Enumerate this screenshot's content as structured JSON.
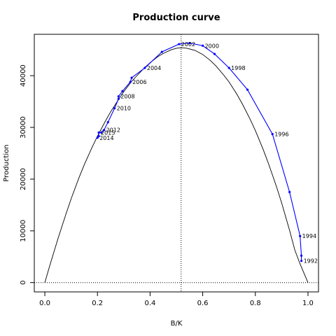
{
  "chart_data": {
    "type": "line",
    "title": "Production curve",
    "xlabel": "B/K",
    "ylabel": "Production",
    "xlim": [
      -0.04,
      1.04
    ],
    "ylim": [
      -1800,
      48000
    ],
    "xticks": [
      0.0,
      0.2,
      0.4,
      0.6,
      0.8,
      1.0
    ],
    "xtick_labels": [
      "0.0",
      "0.2",
      "0.4",
      "0.6",
      "0.8",
      "1.0"
    ],
    "yticks": [
      0,
      10000,
      20000,
      30000,
      40000
    ],
    "ytick_labels": [
      "0",
      "10000",
      "20000",
      "30000",
      "40000"
    ],
    "grid": false,
    "reference_lines": {
      "vertical_x": 0.518,
      "horizontal_y": 0
    },
    "curve": {
      "description": "fitted production function",
      "color": "#000000",
      "x": [
        0.0,
        0.02,
        0.05,
        0.08,
        0.1,
        0.13,
        0.15,
        0.18,
        0.2,
        0.23,
        0.25,
        0.28,
        0.3,
        0.33,
        0.35,
        0.38,
        0.4,
        0.43,
        0.45,
        0.48,
        0.5,
        0.518,
        0.54,
        0.57,
        0.6,
        0.63,
        0.65,
        0.68,
        0.7,
        0.73,
        0.75,
        0.78,
        0.8,
        0.83,
        0.85,
        0.88,
        0.9,
        0.93,
        0.95,
        0.97,
        1.0
      ],
      "y": [
        0,
        3500,
        8500,
        13200,
        16200,
        20300,
        22800,
        26200,
        28300,
        31200,
        33000,
        35400,
        36900,
        38900,
        40000,
        41600,
        42500,
        43700,
        44300,
        45000,
        45300,
        45400,
        45300,
        44900,
        44100,
        42900,
        41900,
        40100,
        38800,
        36400,
        34600,
        31600,
        29400,
        25700,
        23000,
        18600,
        15400,
        10100,
        6300,
        3600,
        0
      ]
    },
    "series": [
      {
        "color": "#0000ff",
        "points": [
          {
            "year": "1992",
            "x": 0.975,
            "y": 4200
          },
          {
            "x": 0.975,
            "y": 5200
          },
          {
            "year": "1994",
            "x": 0.97,
            "y": 9000
          },
          {
            "x": 0.93,
            "y": 17500
          },
          {
            "year": "1996",
            "x": 0.865,
            "y": 28700
          },
          {
            "x": 0.77,
            "y": 37300
          },
          {
            "year": "1998",
            "x": 0.7,
            "y": 41500
          },
          {
            "x": 0.645,
            "y": 44200
          },
          {
            "year": "2000",
            "x": 0.6,
            "y": 45800
          },
          {
            "x": 0.55,
            "y": 46300
          },
          {
            "year": "2002",
            "x": 0.51,
            "y": 46100
          },
          {
            "x": 0.445,
            "y": 44600
          },
          {
            "year": "2004",
            "x": 0.38,
            "y": 41500
          },
          {
            "x": 0.33,
            "y": 39600
          },
          {
            "year": "2006",
            "x": 0.325,
            "y": 38800
          },
          {
            "x": 0.295,
            "y": 37000
          },
          {
            "year": "2008",
            "x": 0.28,
            "y": 36000
          },
          {
            "x": 0.28,
            "y": 35500
          },
          {
            "year": "2010",
            "x": 0.265,
            "y": 33700
          },
          {
            "x": 0.24,
            "y": 31000
          },
          {
            "year": "2012",
            "x": 0.225,
            "y": 29500
          },
          {
            "x": 0.215,
            "y": 29000
          },
          {
            "year": "2015",
            "x": 0.205,
            "y": 29000
          },
          {
            "x": 0.205,
            "y": 28300
          },
          {
            "year": "2014",
            "x": 0.2,
            "y": 28000
          }
        ]
      }
    ]
  }
}
